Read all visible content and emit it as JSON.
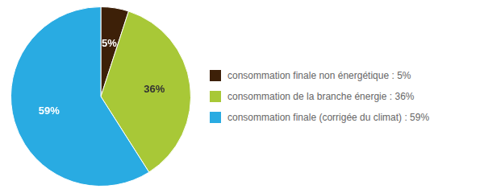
{
  "chart_data": {
    "type": "pie",
    "categories": [
      "consommation finale non énergétique : 5%",
      "consommation de la branche énergie : 36%",
      "consommation finale (corrigée du climat) : 59%"
    ],
    "values": [
      5,
      36,
      59
    ],
    "value_labels": [
      "5%",
      "36%",
      "59%"
    ],
    "colors": [
      "#3d2008",
      "#a8c837",
      "#29abe2"
    ],
    "data_labels": true,
    "legend": "right"
  }
}
